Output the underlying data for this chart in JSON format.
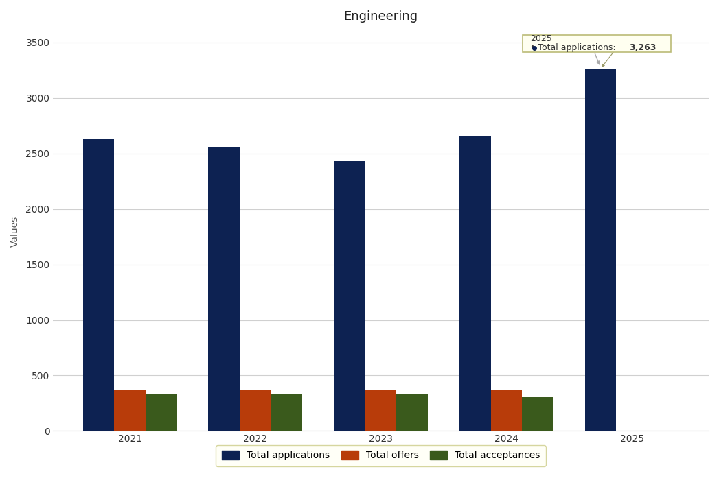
{
  "title": "Engineering",
  "years": [
    "2021",
    "2022",
    "2023",
    "2024",
    "2025"
  ],
  "total_applications": [
    2630,
    2555,
    2430,
    2660,
    3263
  ],
  "total_offers": [
    365,
    375,
    370,
    375,
    0
  ],
  "total_acceptances": [
    330,
    330,
    330,
    308,
    0
  ],
  "color_applications": "#0d2252",
  "color_offers": "#b83c0a",
  "color_acceptances": "#3a5a1c",
  "ylabel": "Values",
  "ylim_min": 0,
  "ylim_max": 3600,
  "yticks": [
    0,
    500,
    1000,
    1500,
    2000,
    2500,
    3000,
    3500
  ],
  "legend_labels": [
    "Total applications",
    "Total offers",
    "Total acceptances"
  ],
  "tooltip_year": "2025",
  "tooltip_series": "Total applications",
  "tooltip_value": "3,263",
  "bg_color": "#ffffff",
  "grid_color": "#d0d0d0"
}
